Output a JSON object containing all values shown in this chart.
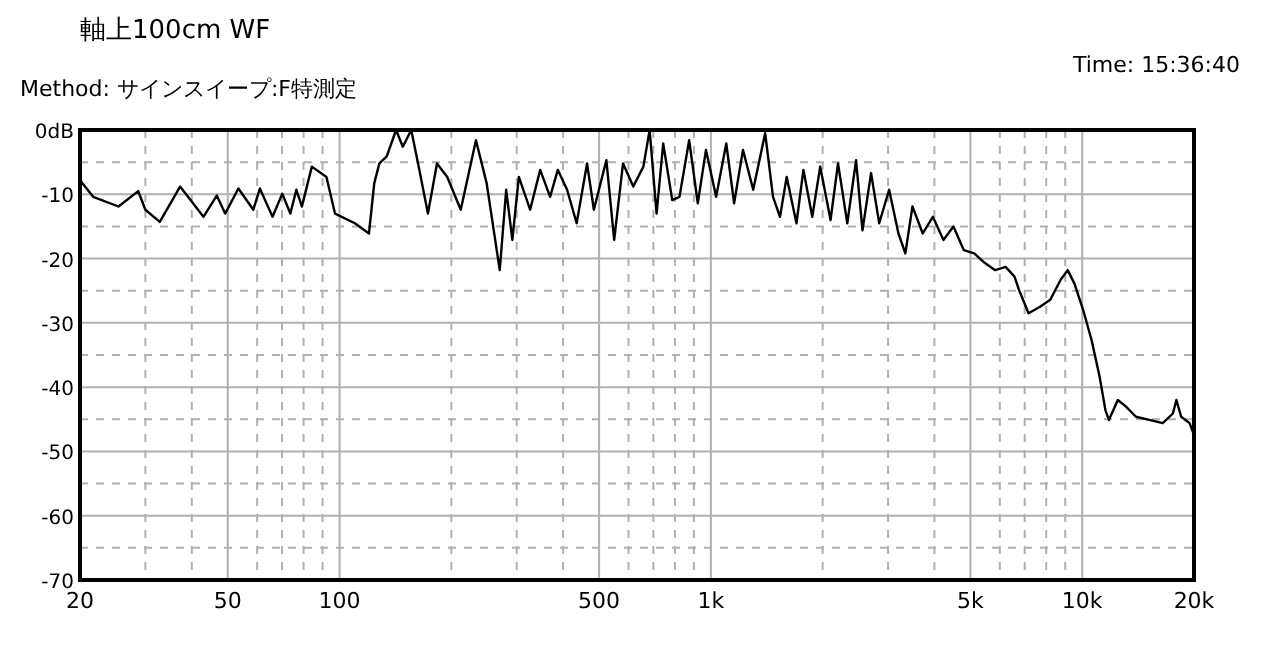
{
  "chart_data": {
    "type": "line",
    "title": "軸上100cm WF",
    "annotations": [
      "Method:  サインスイープ:F特測定",
      "Time: 15:36:40"
    ],
    "log": "x",
    "grid": true,
    "marker": "none",
    "line_style": "solid",
    "xlim": [
      20,
      20000
    ],
    "ylim": [
      -70,
      0
    ],
    "xticks": [
      20,
      {
        "value": 30,
        "label": null
      },
      {
        "value": 40,
        "label": null
      },
      50,
      {
        "value": 60,
        "label": null
      },
      {
        "value": 70,
        "label": null
      },
      {
        "value": 80,
        "label": null
      },
      {
        "value": 90,
        "label": null
      },
      100,
      {
        "value": 200,
        "label": null
      },
      {
        "value": 300,
        "label": null
      },
      {
        "value": 400,
        "label": null
      },
      500,
      {
        "value": 600,
        "label": null
      },
      {
        "value": 700,
        "label": null
      },
      {
        "value": 800,
        "label": null
      },
      {
        "value": 900,
        "label": null
      },
      {
        "value": 1000,
        "label": "1k"
      },
      {
        "value": 2000,
        "label": null
      },
      {
        "value": 3000,
        "label": null
      },
      {
        "value": 4000,
        "label": null
      },
      {
        "value": 5000,
        "label": "5k"
      },
      {
        "value": 6000,
        "label": null
      },
      {
        "value": 7000,
        "label": null
      },
      {
        "value": 8000,
        "label": null
      },
      {
        "value": 9000,
        "label": null
      },
      {
        "value": 10000,
        "label": "10k"
      },
      {
        "value": 20000,
        "label": "20k"
      }
    ],
    "yticks": [
      {
        "value": 0,
        "label": "0dB"
      },
      {
        "value": -5,
        "label": null
      },
      -10,
      {
        "value": -15,
        "label": null
      },
      -20,
      {
        "value": -25,
        "label": null
      },
      -30,
      {
        "value": -35,
        "label": null
      },
      -40,
      {
        "value": -45,
        "label": null
      },
      -50,
      {
        "value": -55,
        "label": null
      },
      -60,
      {
        "value": -65,
        "label": null
      },
      -70
    ],
    "series": [
      {
        "color": "#000000",
        "x": [
          20,
          21.7,
          25.4,
          28.7,
          30,
          32.8,
          37.2,
          43,
          46.7,
          49.2,
          53.4,
          58.6,
          61,
          66,
          70.1,
          73.7,
          76.5,
          79.2,
          84.2,
          92.2,
          97.2,
          110,
          120,
          124,
          128,
          134,
          142,
          148,
          156,
          164,
          173,
          183,
          195,
          212,
          233,
          249,
          270,
          281,
          292,
          304,
          326,
          347,
          369,
          387,
          410,
          435,
          464,
          484,
          523,
          549,
          580,
          618,
          658,
          684,
          714,
          744,
          787,
          823,
          874,
          922,
          970,
          1033,
          1100,
          1155,
          1220,
          1300,
          1400,
          1470,
          1535,
          1600,
          1700,
          1775,
          1875,
          1970,
          2100,
          2200,
          2330,
          2460,
          2560,
          2700,
          2840,
          3020,
          3200,
          3340,
          3490,
          3720,
          3960,
          4230,
          4500,
          4800,
          5120,
          5470,
          5830,
          6220,
          6570,
          6760,
          7170,
          7700,
          8200,
          8750,
          9140,
          9530,
          10060,
          10600,
          11140,
          11550,
          11800,
          12470,
          13100,
          13950,
          15150,
          16470,
          17550,
          17930,
          18470,
          19460,
          19930
        ],
        "values": [
          -7.8,
          -10.4,
          -11.9,
          -9.5,
          -12.4,
          -14.3,
          -8.8,
          -13.5,
          -10.2,
          -13,
          -9.1,
          -12.4,
          -9.1,
          -13.5,
          -9.9,
          -13,
          -9.3,
          -11.9,
          -5.7,
          -7.3,
          -13,
          -14.5,
          -16.1,
          -8.3,
          -5.2,
          -4.1,
          0,
          -2.6,
          0,
          -6.2,
          -13,
          -5.2,
          -7.3,
          -12.4,
          -1.6,
          -8.3,
          -21.8,
          -9.3,
          -17.1,
          -7.3,
          -12.4,
          -6.2,
          -10.4,
          -6.2,
          -9.3,
          -14.5,
          -5.2,
          -12.4,
          -4.7,
          -17.1,
          -5.2,
          -8.8,
          -5.7,
          0,
          -13,
          -2.1,
          -10.9,
          -10.4,
          -1.6,
          -11.4,
          -3.1,
          -10.4,
          -2.1,
          -11.4,
          -3.1,
          -9.3,
          -0.5,
          -10.4,
          -13.5,
          -7.3,
          -14.5,
          -6.2,
          -13.5,
          -5.7,
          -14,
          -5.2,
          -14.5,
          -4.7,
          -15.6,
          -6.7,
          -14.5,
          -9.3,
          -16.1,
          -19.2,
          -11.9,
          -16.1,
          -13.5,
          -17.1,
          -15,
          -18.7,
          -19.2,
          -20.7,
          -21.8,
          -21.3,
          -22.8,
          -24.9,
          -28.5,
          -27.5,
          -26.4,
          -23.3,
          -21.8,
          -23.9,
          -28,
          -32.7,
          -38.4,
          -43.6,
          -45.1,
          -42,
          -43,
          -44.6,
          -45.1,
          -45.6,
          -44.1,
          -42,
          -44.6,
          -45.6,
          -47.2
        ]
      }
    ]
  }
}
